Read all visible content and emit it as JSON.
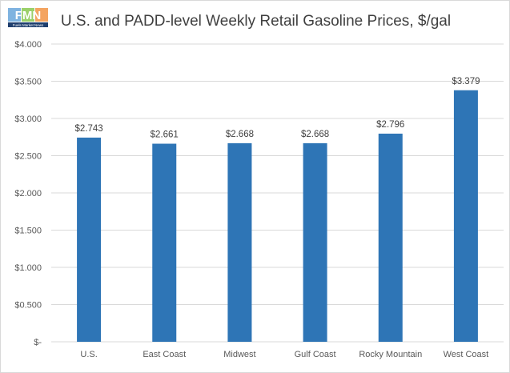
{
  "logo": {
    "name": "fmn-logo-icon",
    "text": "FMN",
    "tagline": "Fuels Market News"
  },
  "chart_data": {
    "type": "bar",
    "title": "U.S. and PADD-level Weekly Retail Gasoline Prices, $/gal",
    "xlabel": "",
    "ylabel": "",
    "categories": [
      "U.S.",
      "East Coast",
      "Midwest",
      "Gulf Coast",
      "Rocky Mountain",
      "West Coast"
    ],
    "values": [
      2.743,
      2.661,
      2.668,
      2.668,
      2.796,
      3.379
    ],
    "data_labels": [
      "$2.743",
      "$2.661",
      "$2.668",
      "$2.668",
      "$2.796",
      "$3.379"
    ],
    "ylim": [
      0,
      4
    ],
    "yticks": [
      0,
      0.5,
      1,
      1.5,
      2,
      2.5,
      3,
      3.5,
      4
    ],
    "ytick_labels": [
      "$-",
      "$0.500",
      "$1.000",
      "$1.500",
      "$2.000",
      "$2.500",
      "$3.000",
      "$3.500",
      "$4.000"
    ],
    "grid": true,
    "legend": "none",
    "colors": {
      "bar": "#2e75b6",
      "grid": "#d9d9d9",
      "text": "#595959"
    }
  }
}
